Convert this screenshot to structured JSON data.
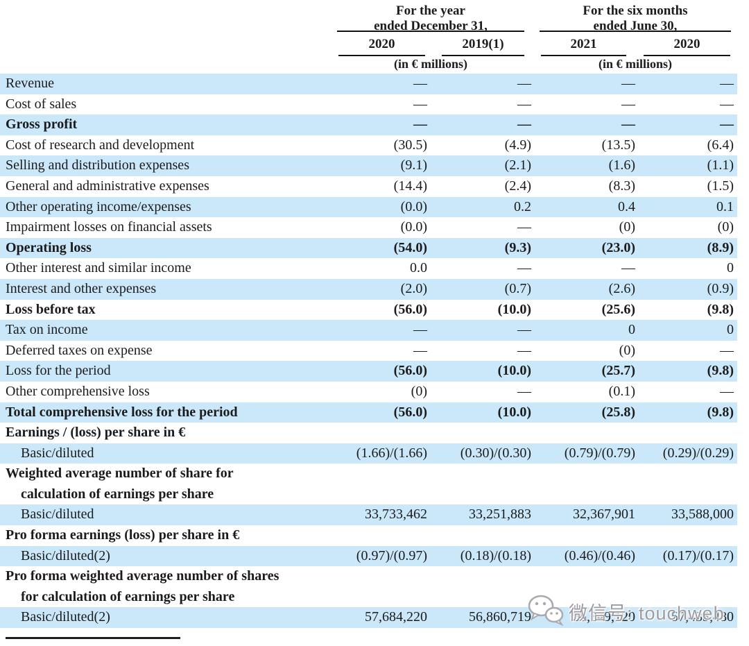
{
  "header": {
    "group1": {
      "title_line1": "For the year",
      "title_line2": "ended December 31,",
      "col1": "2020",
      "col2": "2019(1)",
      "unit": "(in € millions)"
    },
    "group2": {
      "title_line1": "For the six months",
      "title_line2": "ended June 30,",
      "col1": "2021",
      "col2": "2020",
      "unit": "(in € millions)"
    }
  },
  "table": {
    "columns": [
      "2020",
      "2019(1)",
      "2021",
      "2020"
    ],
    "rows": [
      {
        "label": "Revenue",
        "values": [
          "—",
          "—",
          "—",
          "—"
        ],
        "shaded": true
      },
      {
        "label": "Cost of sales",
        "values": [
          "—",
          "—",
          "—",
          "—"
        ],
        "shaded": false
      },
      {
        "label": "Gross profit",
        "values": [
          "—",
          "—",
          "—",
          "—"
        ],
        "shaded": true,
        "bold": true
      },
      {
        "label": "Cost of research and development",
        "values": [
          "(30.5)",
          "(4.9)",
          "(13.5)",
          "(6.4)"
        ],
        "shaded": false
      },
      {
        "label": "Selling and distribution expenses",
        "values": [
          "(9.1)",
          "(2.1)",
          "(1.6)",
          "(1.1)"
        ],
        "shaded": true
      },
      {
        "label": "General and administrative expenses",
        "values": [
          "(14.4)",
          "(2.4)",
          "(8.3)",
          "(1.5)"
        ],
        "shaded": false
      },
      {
        "label": "Other operating income/expenses",
        "values": [
          "(0.0)",
          "0.2",
          "0.4",
          "0.1"
        ],
        "shaded": true
      },
      {
        "label": "Impairment losses on financial assets",
        "values": [
          "(0.0)",
          "—",
          "(0)",
          "(0)"
        ],
        "shaded": false
      },
      {
        "label": "Operating loss",
        "values": [
          "(54.0)",
          "(9.3)",
          "(23.0)",
          "(8.9)"
        ],
        "shaded": true,
        "bold": true
      },
      {
        "label": "Other interest and similar income",
        "values": [
          "0.0",
          "—",
          "—",
          "0"
        ],
        "shaded": false
      },
      {
        "label": "Interest and other expenses",
        "values": [
          "(2.0)",
          "(0.7)",
          "(2.6)",
          "(0.9)"
        ],
        "shaded": true
      },
      {
        "label": "Loss before tax",
        "values": [
          "(56.0)",
          "(10.0)",
          "(25.6)",
          "(9.8)"
        ],
        "shaded": false,
        "bold": true
      },
      {
        "label": "Tax on income",
        "values": [
          "—",
          "—",
          "0",
          "0"
        ],
        "shaded": true
      },
      {
        "label": "Deferred taxes on expense",
        "values": [
          "—",
          "—",
          "(0)",
          "—"
        ],
        "shaded": false
      },
      {
        "label": "Loss for the period",
        "values": [
          "(56.0)",
          "(10.0)",
          "(25.7)",
          "(9.8)"
        ],
        "shaded": true,
        "bold_values": true
      },
      {
        "label": "Other comprehensive loss",
        "values": [
          "(0)",
          "—",
          "(0.1)",
          "—"
        ],
        "shaded": false
      },
      {
        "label": "Total comprehensive loss for the period",
        "values": [
          "(56.0)",
          "(10.0)",
          "(25.8)",
          "(9.8)"
        ],
        "shaded": true,
        "bold": true
      },
      {
        "label": "Earnings / (loss) per share in €",
        "values": [],
        "shaded": false,
        "bold": true
      },
      {
        "label": "Basic/diluted",
        "values": [
          "(1.66)/(1.66)",
          "(0.30)/(0.30)",
          "(0.79)/(0.79)",
          "(0.29)/(0.29)"
        ],
        "shaded": true,
        "indent": true
      },
      {
        "label": "Weighted average number of share for",
        "values": [],
        "shaded": false,
        "bold": true
      },
      {
        "label": "calculation of earnings per share",
        "values": [],
        "shaded": false,
        "bold": true,
        "indent": true
      },
      {
        "label": "Basic/diluted",
        "values": [
          "33,733,462",
          "33,251,883",
          "32,367,901",
          "33,588,000"
        ],
        "shaded": true,
        "indent": true
      },
      {
        "label": "Pro forma earnings (loss) per share in €",
        "values": [],
        "shaded": false,
        "bold": true
      },
      {
        "label": "Basic/diluted(2)",
        "values": [
          "(0.97)/(0.97)",
          "(0.18)/(0.18)",
          "(0.46)/(0.46)",
          "(0.17)/(0.17)"
        ],
        "shaded": true,
        "indent": true
      },
      {
        "label": "Pro forma weighted average number of shares",
        "values": [],
        "shaded": false,
        "bold": true
      },
      {
        "label": "for calculation of earnings per share",
        "values": [],
        "shaded": false,
        "bold": true,
        "indent": true
      },
      {
        "label": "Basic/diluted(2)",
        "values": [
          "57,684,220",
          "56,860,719",
          "55,849,120",
          "57,433,480"
        ],
        "shaded": true,
        "indent": true
      }
    ]
  },
  "watermark": {
    "icon": "wechat-icon",
    "text": "微信号: touchweb"
  },
  "colors": {
    "stripe_blue": "#cbe8fa",
    "text": "#1b1b1b",
    "watermark_gray": "#9b9ba1"
  }
}
